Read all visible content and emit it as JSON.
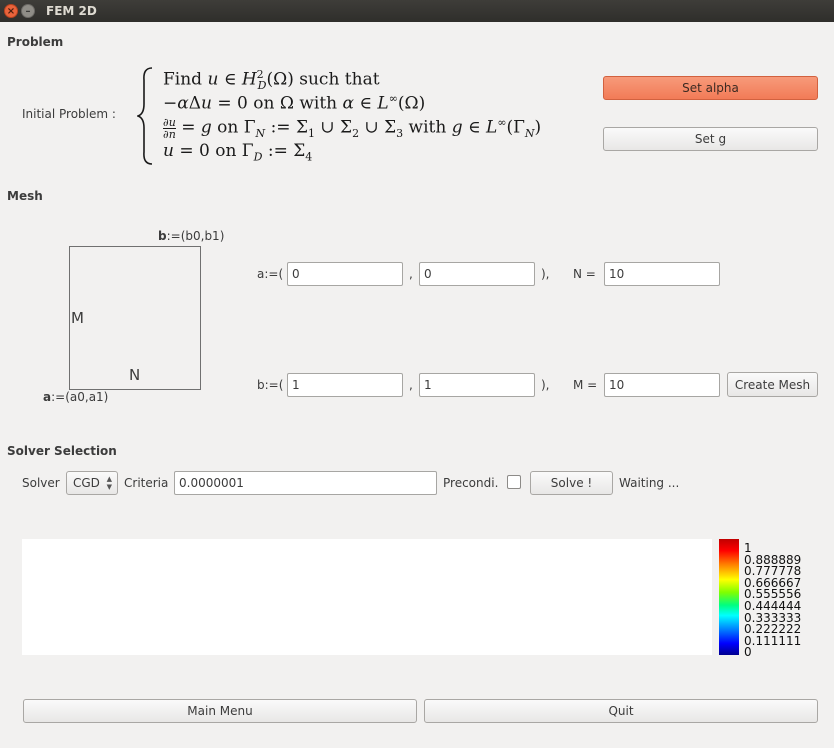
{
  "window": {
    "title": "FEM 2D"
  },
  "problem": {
    "section": "Problem",
    "label": "Initial Problem :",
    "set_alpha": "Set alpha",
    "set_g": "Set g"
  },
  "mesh": {
    "section": "Mesh",
    "b_label_bold": "b",
    "b_label_rest": ":=(b0,b1)",
    "a_label_bold": "a",
    "a_label_rest": ":=(a0,a1)",
    "side_m": "M",
    "side_n": "N",
    "a_prefix": "a:=(",
    "b_prefix": "b:=(",
    "comma": ",",
    "close": "),",
    "a0": "0",
    "a1": "0",
    "b0": "1",
    "b1": "1",
    "n_label": "N =",
    "n_value": "10",
    "m_label": "M =",
    "m_value": "10",
    "create_mesh": "Create Mesh"
  },
  "solver": {
    "section": "Solver Selection",
    "solver_label": "Solver",
    "solver_value": "CGD",
    "criteria_label": "Criteria",
    "criteria_value": "0.0000001",
    "precondi_label": "Precondi.",
    "precondi_checked": false,
    "solve_button": "Solve !",
    "status": "Waiting ..."
  },
  "colorbar": {
    "labels": [
      "1",
      "0.888889",
      "0.777778",
      "0.666667",
      "0.555556",
      "0.444444",
      "0.333333",
      "0.222222",
      "0.111111",
      "0"
    ]
  },
  "footer": {
    "main_menu": "Main Menu",
    "quit": "Quit"
  }
}
